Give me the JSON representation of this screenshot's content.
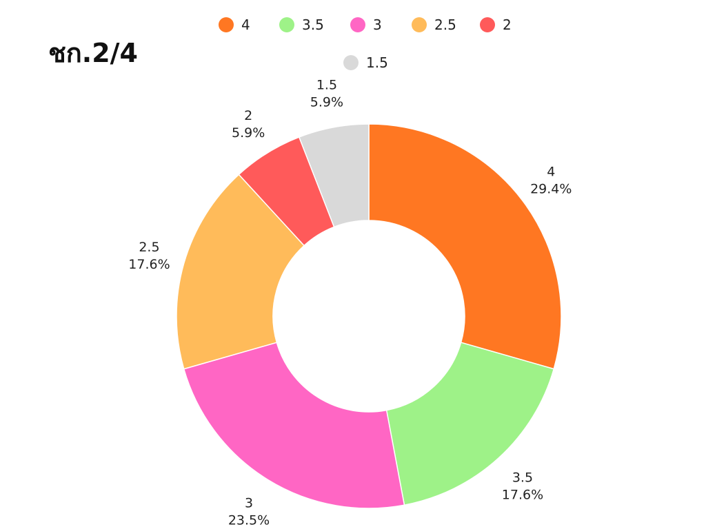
{
  "chart_data": {
    "type": "pie",
    "variant": "donut",
    "title": "ชก.2/4",
    "categories": [
      "4",
      "3.5",
      "3",
      "2.5",
      "2",
      "1.5"
    ],
    "values": [
      29.4,
      17.6,
      23.5,
      17.6,
      5.9,
      5.9
    ],
    "value_labels": [
      "29.4%",
      "17.6%",
      "23.5%",
      "17.6%",
      "5.9%",
      "5.9%"
    ],
    "colors": [
      "#ff7722",
      "#9ef288",
      "#ff66c4",
      "#ffbb5a",
      "#ff5a5a",
      "#d9d9d9"
    ],
    "legend": {
      "position": "top",
      "items": [
        "4",
        "3.5",
        "3",
        "2.5",
        "2",
        "1.5"
      ]
    },
    "start_angle_deg": 0,
    "direction": "clockwise"
  }
}
